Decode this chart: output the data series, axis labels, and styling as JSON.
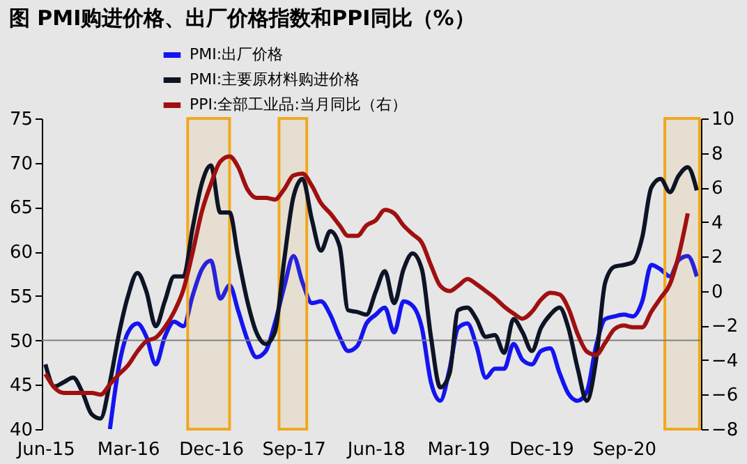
{
  "chart_data": {
    "type": "line",
    "title": "图  PMI购进价格、出厂价格指数和PPI同比（%）",
    "x": [
      "2015-06",
      "2015-07",
      "2015-08",
      "2015-09",
      "2015-10",
      "2015-11",
      "2015-12",
      "2016-01",
      "2016-02",
      "2016-03",
      "2016-04",
      "2016-05",
      "2016-06",
      "2016-07",
      "2016-08",
      "2016-09",
      "2016-10",
      "2016-11",
      "2016-12",
      "2017-01",
      "2017-02",
      "2017-03",
      "2017-04",
      "2017-05",
      "2017-06",
      "2017-07",
      "2017-08",
      "2017-09",
      "2017-10",
      "2017-11",
      "2017-12",
      "2018-01",
      "2018-02",
      "2018-03",
      "2018-04",
      "2018-05",
      "2018-06",
      "2018-07",
      "2018-08",
      "2018-09",
      "2018-10",
      "2018-11",
      "2018-12",
      "2019-01",
      "2019-02",
      "2019-03",
      "2019-04",
      "2019-05",
      "2019-06",
      "2019-07",
      "2019-08",
      "2019-09",
      "2019-10",
      "2019-11",
      "2019-12",
      "2020-01",
      "2020-02",
      "2020-03",
      "2020-04",
      "2020-05",
      "2020-06",
      "2020-07",
      "2020-08",
      "2020-09",
      "2020-10",
      "2020-11",
      "2020-12",
      "2021-01",
      "2021-02",
      "2021-03",
      "2021-04",
      "2021-05"
    ],
    "series": [
      {
        "name": "PMI:出厂价格",
        "color": "#1414f0",
        "values": [
          null,
          null,
          null,
          null,
          null,
          null,
          null,
          40,
          47.3,
          50.9,
          51.9,
          50.4,
          47.3,
          50.4,
          52.1,
          51.6,
          55,
          58,
          59,
          54.7,
          56.2,
          53.4,
          50.1,
          48.1,
          48.8,
          51.9,
          56,
          59.5,
          56.5,
          54.2,
          54.4,
          52.9,
          50.4,
          48.8,
          49.4,
          51.9,
          52.9,
          53.7,
          50.9,
          54.4,
          53.9,
          51.4,
          45.3,
          43.2,
          46.8,
          51.4,
          51.9,
          49.4,
          45.8,
          46.8,
          46.8,
          49.6,
          47.8,
          47.3,
          48.8,
          49.1,
          46.3,
          44,
          43.2,
          44.2,
          49.4,
          52.4,
          52.7,
          52.9,
          52.7,
          54.4,
          58.5,
          58,
          57.2,
          59,
          59.5,
          57.2
        ]
      },
      {
        "name": "PMI:主要原材料购进价格",
        "color": "#0d1426",
        "values": [
          47.3,
          44.8,
          45.3,
          45.8,
          44.2,
          41.7,
          41.2,
          45.3,
          50.9,
          55,
          57.6,
          55.5,
          51.6,
          54.4,
          57.2,
          57.2,
          62.6,
          67.7,
          69.7,
          64.4,
          64.4,
          59.5,
          54.4,
          50.9,
          49.6,
          50.9,
          59,
          66.2,
          68.2,
          63.6,
          60.1,
          62.3,
          60.6,
          53.4,
          53.2,
          52.9,
          55.5,
          57.8,
          54.2,
          58,
          59.8,
          58,
          50.4,
          44.7,
          46.3,
          53.4,
          53.7,
          52.4,
          50.4,
          50.6,
          48.6,
          52.4,
          50.9,
          48.8,
          51.4,
          52.9,
          53.7,
          51.4,
          46.8,
          43.2,
          47.8,
          56.5,
          58.3,
          58.5,
          58.8,
          61.6,
          67.2,
          68.2,
          66.7,
          68.5,
          69.5,
          66.9
        ]
      },
      {
        "name": "PPI:全部工业品:当月同比（右）",
        "color": "#a01010",
        "axis": "y2",
        "values": [
          -4.8,
          -5.6,
          -5.9,
          -5.9,
          -5.9,
          -5.9,
          -6.0,
          -5.4,
          -4.8,
          -4.3,
          -3.5,
          -2.9,
          -2.7,
          -2.1,
          -1.2,
          0.1,
          2.2,
          4.6,
          6.2,
          7.5,
          7.8,
          7.2,
          5.9,
          5.4,
          5.4,
          5.3,
          5.9,
          6.7,
          6.8,
          6.1,
          5.1,
          4.5,
          3.8,
          3.2,
          3.2,
          3.8,
          4.1,
          4.7,
          4.5,
          3.8,
          3.3,
          2.8,
          1.5,
          0.3,
          0.0,
          0.3,
          0.7,
          0.4,
          0.0,
          -0.4,
          -0.9,
          -1.3,
          -1.6,
          -1.2,
          -0.5,
          -0.1,
          -0.2,
          -1.0,
          -2.5,
          -3.5,
          -3.7,
          -3.0,
          -2.2,
          -2.0,
          -2.1,
          -2.1,
          -1.2,
          -0.4,
          0.4,
          2.0,
          4.5,
          null
        ]
      }
    ],
    "xlim": [
      "2015-05-20",
      "2021-05-15"
    ],
    "xticks": [
      {
        "value": "2015-06",
        "label": "Jun-15"
      },
      {
        "value": "2016-03",
        "label": "Mar-16"
      },
      {
        "value": "2016-12",
        "label": "Dec-16"
      },
      {
        "value": "2017-09",
        "label": "Sep-17"
      },
      {
        "value": "2018-06",
        "label": "Jun-18"
      },
      {
        "value": "2019-03",
        "label": "Mar-19"
      },
      {
        "value": "2019-12",
        "label": "Dec-19"
      },
      {
        "value": "2020-09",
        "label": "Sep-20"
      }
    ],
    "ylim": [
      40,
      75
    ],
    "yticks": [
      40,
      45,
      50,
      55,
      60,
      65,
      70,
      75
    ],
    "y2lim": [
      -8,
      10
    ],
    "y2ticks": [
      -8,
      -6,
      -4,
      -2,
      0,
      2,
      4,
      6,
      8,
      10
    ],
    "ref_lines": [
      {
        "axis": "y",
        "value": 50,
        "color": "#808080"
      }
    ],
    "bands": [
      {
        "axis": "x",
        "from": "2016-09-15",
        "to": "2017-02-01",
        "color": "#f0a820"
      },
      {
        "axis": "x",
        "from": "2017-07-15",
        "to": "2017-10-15",
        "color": "#f0a820"
      },
      {
        "axis": "x",
        "from": "2021-01-15",
        "to": "2021-05-10",
        "color": "#f0a820"
      }
    ],
    "grid": false,
    "legend": "top left",
    "line_style": "solid"
  }
}
